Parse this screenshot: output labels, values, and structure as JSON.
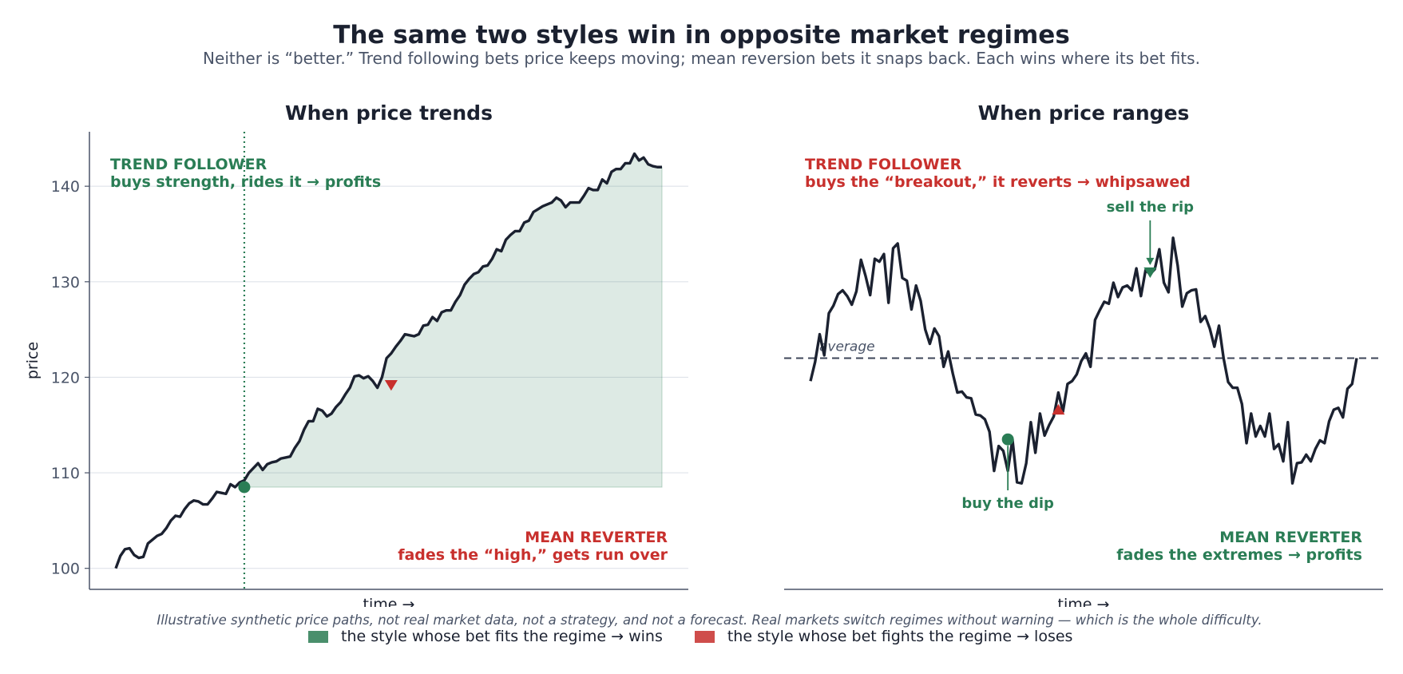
{
  "title": "The same two styles win in opposite market regimes",
  "subtitle": "Neither is “better.” Trend following bets price keeps moving; mean reversion bets it snaps back. Each wins where its bet fits.",
  "footnote": "Illustrative synthetic price paths, not real market data, not a strategy, and not a forecast. Real markets switch regimes without warning — which is the whole difficulty.",
  "colors": {
    "good": "#2a7d55",
    "bad": "#c8302d",
    "line": "#1b2130",
    "grid": "#dfe3ea",
    "axis": "#4a5468"
  },
  "legend": [
    {
      "label": "the style whose bet fits the regime  → wins",
      "color": "#4a8f6c"
    },
    {
      "label": "the style whose bet fights the regime  → loses",
      "color": "#cf4d4b"
    }
  ],
  "chart_data": [
    {
      "type": "line",
      "title": "When price trends",
      "xlabel": "time  →",
      "ylabel": "price",
      "ylim": [
        97.8,
        145.7
      ],
      "yticks": [
        100,
        110,
        120,
        130,
        140
      ],
      "grid": true,
      "x": [
        0,
        1,
        2,
        3,
        4,
        5,
        6,
        7,
        8,
        9,
        10,
        11,
        12,
        13,
        14,
        15,
        16,
        17,
        18,
        19,
        20,
        21,
        22,
        23,
        24,
        25,
        26,
        27,
        28,
        29,
        30,
        31,
        32,
        33,
        34,
        35,
        36,
        37,
        38,
        39,
        40,
        41,
        42,
        43,
        44,
        45,
        46,
        47,
        48,
        49,
        50,
        51,
        52,
        53,
        54,
        55,
        56,
        57,
        58,
        59,
        60,
        61,
        62,
        63,
        64,
        65,
        66,
        67,
        68,
        69,
        70,
        71,
        72,
        73,
        74,
        75,
        76,
        77,
        78,
        79,
        80,
        81,
        82,
        83,
        84,
        85,
        86,
        87,
        88,
        89,
        90,
        91,
        92,
        93,
        94,
        95,
        96,
        97,
        98,
        99,
        100,
        101,
        102,
        103,
        104,
        105,
        106,
        107,
        108,
        109,
        110,
        111,
        112,
        113,
        114,
        115,
        116,
        117,
        118,
        119
      ],
      "series": [
        {
          "values": [
            100.0,
            101.3,
            102.0,
            102.1,
            101.4,
            101.1,
            101.2,
            102.6,
            103.0,
            103.4,
            103.6,
            104.2,
            105.0,
            105.5,
            105.4,
            106.2,
            106.8,
            107.1,
            107.0,
            106.7,
            106.7,
            107.3,
            108.0,
            107.9,
            107.8,
            108.8,
            108.5,
            109.0,
            109.2,
            110.0,
            110.5,
            111.0,
            110.3,
            110.9,
            111.1,
            111.2,
            111.5,
            111.6,
            111.7,
            112.6,
            113.3,
            114.5,
            115.4,
            115.4,
            116.7,
            116.5,
            115.9,
            116.2,
            116.9,
            117.4,
            118.2,
            118.9,
            120.1,
            120.2,
            119.9,
            120.1,
            119.6,
            118.9,
            120.0,
            122.0,
            122.5,
            123.2,
            123.8,
            124.5,
            124.4,
            124.3,
            124.5,
            125.4,
            125.5,
            126.3,
            125.9,
            126.8,
            127.0,
            127.0,
            127.9,
            128.6,
            129.7,
            130.3,
            130.8,
            131.0,
            131.6,
            131.7,
            132.4,
            133.4,
            133.2,
            134.4,
            134.9,
            135.3,
            135.3,
            136.2,
            136.4,
            137.3,
            137.6,
            137.9,
            138.1,
            138.3,
            138.8,
            138.5,
            137.8,
            138.3,
            138.3,
            138.3,
            139.0,
            139.8,
            139.6,
            139.6,
            140.7,
            140.3,
            141.5,
            141.8,
            141.8,
            142.4,
            142.4,
            143.4,
            142.7,
            143.0,
            142.3,
            142.1,
            142.0,
            142.0
          ]
        }
      ],
      "entry": {
        "x": 28,
        "y": 108.5
      },
      "fade": {
        "x": 60,
        "y": 119.2
      },
      "fill_base": 108.5,
      "annotations": [
        {
          "role": "good",
          "line1": "TREND FOLLOWER",
          "line2": "buys strength, rides it  → profits"
        },
        {
          "role": "bad",
          "line1": "MEAN REVERTER",
          "line2": "fades the “high,” gets run over"
        }
      ]
    },
    {
      "type": "line",
      "title": "When price ranges",
      "xlabel": "time  →",
      "ylim": [
        97.8,
        145.7
      ],
      "grid": false,
      "average": 122.0,
      "average_label": "average",
      "x": [
        0,
        1,
        2,
        3,
        4,
        5,
        6,
        7,
        8,
        9,
        10,
        11,
        12,
        13,
        14,
        15,
        16,
        17,
        18,
        19,
        20,
        21,
        22,
        23,
        24,
        25,
        26,
        27,
        28,
        29,
        30,
        31,
        32,
        33,
        34,
        35,
        36,
        37,
        38,
        39,
        40,
        41,
        42,
        43,
        44,
        45,
        46,
        47,
        48,
        49,
        50,
        51,
        52,
        53,
        54,
        55,
        56,
        57,
        58,
        59,
        60,
        61,
        62,
        63,
        64,
        65,
        66,
        67,
        68,
        69,
        70,
        71,
        72,
        73,
        74,
        75,
        76,
        77,
        78,
        79,
        80,
        81,
        82,
        83,
        84,
        85,
        86,
        87,
        88,
        89,
        90,
        91,
        92,
        93,
        94,
        95,
        96,
        97,
        98,
        99,
        100,
        101,
        102,
        103,
        104,
        105,
        106,
        107,
        108,
        109,
        110,
        111,
        112,
        113,
        114,
        115,
        116,
        117,
        118,
        119
      ],
      "series": [
        {
          "values": [
            119.6,
            121.6,
            124.5,
            122.3,
            126.7,
            127.5,
            128.7,
            129.1,
            128.5,
            127.6,
            129.0,
            132.3,
            130.6,
            128.6,
            132.4,
            132.1,
            132.9,
            127.8,
            133.5,
            134.0,
            130.4,
            130.1,
            127.1,
            129.6,
            128.0,
            125.0,
            123.5,
            125.1,
            124.3,
            121.1,
            122.7,
            120.4,
            118.4,
            118.5,
            117.9,
            117.8,
            116.1,
            116.0,
            115.6,
            114.3,
            110.2,
            112.8,
            112.3,
            110.2,
            113.5,
            109.0,
            108.9,
            111.0,
            115.3,
            112.1,
            116.2,
            113.9,
            115.0,
            115.9,
            118.4,
            116.4,
            119.3,
            119.6,
            120.3,
            121.7,
            122.5,
            121.1,
            126.0,
            127.0,
            127.9,
            127.7,
            129.9,
            128.4,
            129.4,
            129.6,
            129.1,
            131.4,
            128.5,
            131.2,
            130.8,
            131.3,
            133.4,
            129.9,
            128.9,
            134.6,
            131.7,
            127.4,
            128.8,
            129.1,
            129.2,
            125.8,
            126.4,
            125.1,
            123.2,
            125.4,
            122.0,
            119.5,
            118.9,
            118.9,
            117.2,
            113.1,
            116.2,
            113.8,
            114.9,
            113.8,
            116.2,
            112.5,
            113.0,
            111.2,
            115.3,
            108.9,
            111.0,
            111.1,
            111.9,
            111.2,
            112.5,
            113.4,
            113.1,
            115.4,
            116.6,
            116.8,
            115.8,
            118.8,
            119.3,
            122.0
          ]
        }
      ],
      "markers": [
        {
          "role": "good",
          "shape": "circle",
          "x": 43,
          "y": 113.5,
          "label": "buy the dip"
        },
        {
          "role": "good",
          "shape": "triangle-down",
          "x": 74,
          "y": 131.0,
          "label": "sell the rip"
        },
        {
          "role": "bad",
          "shape": "triangle-up",
          "x": 54,
          "y": 116.6
        }
      ],
      "annotations": [
        {
          "role": "bad",
          "line1": "TREND FOLLOWER",
          "line2": "buys the “breakout,” it reverts  → whipsawed"
        },
        {
          "role": "good",
          "line1": "MEAN REVERTER",
          "line2": "fades the extremes  → profits"
        }
      ]
    }
  ]
}
